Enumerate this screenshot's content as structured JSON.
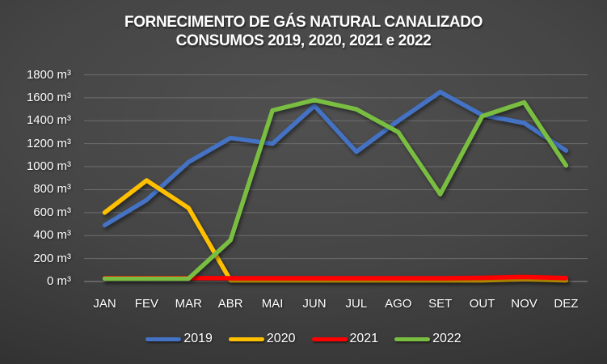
{
  "chart_data": {
    "type": "line",
    "title": "FORNECIMENTO DE GÁS NATURAL CANALIZADO",
    "subtitle": "CONSUMOS 2019, 2020, 2021 e 2022",
    "categories": [
      "JAN",
      "FEV",
      "MAR",
      "ABR",
      "MAI",
      "JUN",
      "JUL",
      "AGO",
      "SET",
      "OUT",
      "NOV",
      "DEZ"
    ],
    "series": [
      {
        "name": "2019",
        "color": "#4472C4",
        "values": [
          490,
          710,
          1040,
          1250,
          1200,
          1530,
          1130,
          1400,
          1650,
          1450,
          1380,
          1140
        ]
      },
      {
        "name": "2020",
        "color": "#FFC000",
        "values": [
          600,
          880,
          640,
          10,
          10,
          10,
          10,
          10,
          10,
          10,
          20,
          10
        ]
      },
      {
        "name": "2021",
        "color": "#FF0000",
        "values": [
          30,
          30,
          30,
          28,
          28,
          28,
          28,
          28,
          28,
          32,
          40,
          30
        ]
      },
      {
        "name": "2022",
        "color": "#79BE41",
        "values": [
          25,
          25,
          25,
          360,
          1490,
          1580,
          1500,
          1300,
          760,
          1440,
          1560,
          1010
        ]
      }
    ],
    "y_ticks": [
      0,
      200,
      400,
      600,
      800,
      1000,
      1200,
      1400,
      1600,
      1800
    ],
    "y_tick_labels": [
      "0 m³",
      "200 m³",
      "400 m³",
      "600 m³",
      "800 m³",
      "1000 m³",
      "1200 m³",
      "1400 m³",
      "1600 m³",
      "1800 m³"
    ],
    "y_unit": "m³",
    "ylim": [
      0,
      1800
    ],
    "grid": true,
    "grid_color": "#6e6e6e",
    "zero_line_color": "#8a8a8a",
    "text_color": "#ffffff",
    "legend_position": "bottom"
  }
}
